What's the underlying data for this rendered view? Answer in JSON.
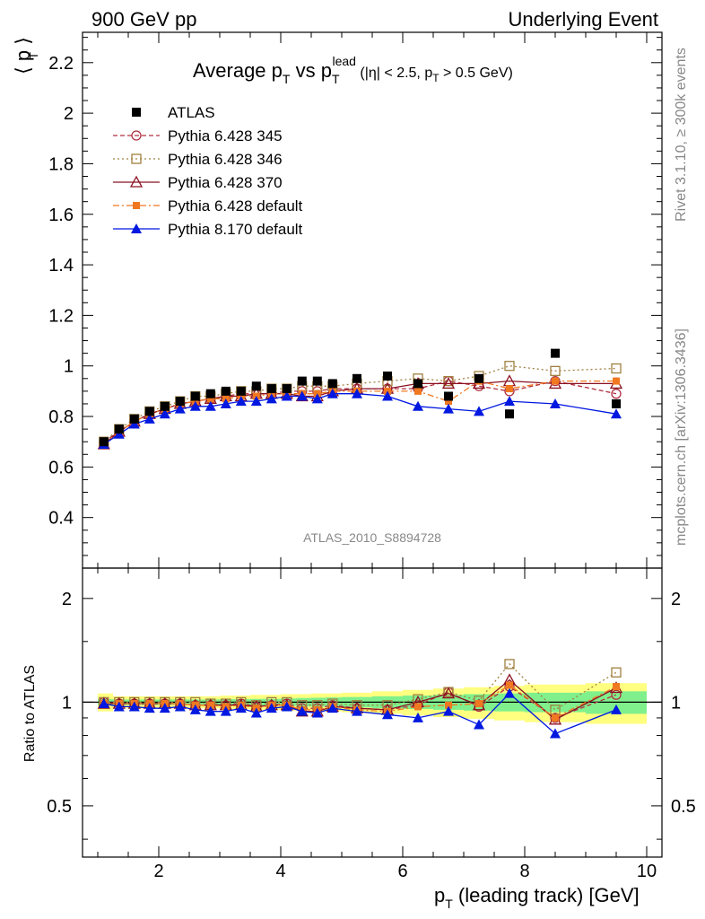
{
  "header": {
    "left": "900 GeV pp",
    "right": "Underlying Event"
  },
  "side_labels": {
    "top": "Rivet 3.1.10, ≥ 300k events",
    "bottom": "mcplots.cern.ch [arXiv:1306.3436]"
  },
  "chart_data": [
    {
      "type": "scatter",
      "panel": "main",
      "title": {
        "main": "Average p",
        "sub_T": "T",
        "vs": " vs p",
        "sup_lead": "lead",
        "cut_open": " (|η| < 2.5, p",
        "cut_sub": "T",
        "cut_close": " > 0.5 GeV)"
      },
      "ylabel": "⟨ p  ⟩",
      "ylabel_sub": "T",
      "xlim": [
        0.75,
        10.25
      ],
      "ylim": [
        0.2,
        2.32
      ],
      "yticks": [
        0.4,
        0.6,
        0.8,
        1,
        1.2,
        1.4,
        1.6,
        1.8,
        2,
        2.2
      ],
      "ytick_labels": [
        "0.4",
        "0.6",
        "0.8",
        "1",
        "1.2",
        "1.4",
        "1.6",
        "1.8",
        "2",
        "2.2"
      ],
      "watermark": "ATLAS_2010_S8894728",
      "legend_position": "top-left",
      "x": [
        1.1,
        1.35,
        1.6,
        1.85,
        2.1,
        2.35,
        2.6,
        2.85,
        3.1,
        3.35,
        3.6,
        3.85,
        4.1,
        4.35,
        4.6,
        4.85,
        5.25,
        5.75,
        6.25,
        6.75,
        7.25,
        7.75,
        8.5,
        9.5
      ],
      "series": [
        {
          "name": "ATLAS",
          "color": "#000000",
          "marker": "square-filled",
          "line": "none",
          "values": [
            0.7,
            0.75,
            0.79,
            0.82,
            0.84,
            0.86,
            0.88,
            0.89,
            0.9,
            0.9,
            0.92,
            0.91,
            0.91,
            0.94,
            0.94,
            0.93,
            0.95,
            0.96,
            0.93,
            0.88,
            0.95,
            0.81,
            1.05,
            0.85
          ]
        },
        {
          "name": "Pythia 6.428 345",
          "color": "#b03040",
          "marker": "circle-open",
          "line": "dashed",
          "values": [
            0.7,
            0.74,
            0.78,
            0.81,
            0.83,
            0.85,
            0.86,
            0.87,
            0.88,
            0.89,
            0.89,
            0.89,
            0.9,
            0.9,
            0.9,
            0.91,
            0.91,
            0.91,
            0.91,
            0.94,
            0.92,
            0.9,
            0.94,
            0.89
          ]
        },
        {
          "name": "Pythia 6.428 346",
          "color": "#a08040",
          "marker": "square-open",
          "line": "dotted",
          "values": [
            0.7,
            0.75,
            0.79,
            0.82,
            0.84,
            0.86,
            0.88,
            0.88,
            0.89,
            0.9,
            0.9,
            0.91,
            0.91,
            0.92,
            0.92,
            0.92,
            0.93,
            0.94,
            0.95,
            0.94,
            0.96,
            1.0,
            0.98,
            0.99
          ]
        },
        {
          "name": "Pythia 6.428 370",
          "color": "#8b1020",
          "marker": "triangle-open",
          "line": "solid",
          "values": [
            0.69,
            0.74,
            0.78,
            0.81,
            0.83,
            0.85,
            0.86,
            0.87,
            0.88,
            0.88,
            0.89,
            0.89,
            0.89,
            0.88,
            0.88,
            0.9,
            0.91,
            0.91,
            0.93,
            0.93,
            0.93,
            0.94,
            0.93,
            0.93
          ]
        },
        {
          "name": "Pythia 6.428 default",
          "color": "#f07820",
          "marker": "square-filled-small",
          "line": "dashdot",
          "values": [
            0.69,
            0.74,
            0.78,
            0.81,
            0.83,
            0.85,
            0.86,
            0.87,
            0.87,
            0.88,
            0.88,
            0.89,
            0.89,
            0.89,
            0.89,
            0.9,
            0.9,
            0.9,
            0.9,
            0.86,
            0.94,
            0.91,
            0.94,
            0.94
          ]
        },
        {
          "name": "Pythia 8.170 default",
          "color": "#0018e0",
          "marker": "triangle-filled",
          "line": "solid",
          "values": [
            0.69,
            0.73,
            0.77,
            0.79,
            0.81,
            0.83,
            0.84,
            0.84,
            0.85,
            0.86,
            0.86,
            0.87,
            0.88,
            0.88,
            0.87,
            0.89,
            0.89,
            0.88,
            0.84,
            0.83,
            0.82,
            0.86,
            0.85,
            0.81
          ]
        }
      ]
    },
    {
      "type": "scatter",
      "panel": "ratio",
      "ylabel": "Ratio to ATLAS",
      "xlabel": "p",
      "xlabel_sub": "T",
      "xlabel_rest": " (leading track) [GeV]",
      "xlim": [
        0.75,
        10.25
      ],
      "ylim": [
        0.355,
        2.45
      ],
      "yscale": "log",
      "xticks": [
        2,
        4,
        6,
        8,
        10
      ],
      "xtick_labels": [
        "2",
        "4",
        "6",
        "8",
        "10"
      ],
      "yticks": [
        0.5,
        1,
        2
      ],
      "ytick_labels": [
        "0.5",
        "1",
        "2"
      ],
      "band_edges": [
        1.0,
        1.25,
        1.5,
        1.75,
        2.0,
        2.25,
        2.5,
        2.75,
        3.0,
        3.25,
        3.5,
        3.75,
        4.0,
        4.25,
        4.5,
        4.75,
        5.0,
        5.5,
        6.0,
        6.5,
        7.0,
        7.5,
        8.0,
        9.0,
        10.0
      ],
      "band_stat": [
        0.02,
        0.018,
        0.018,
        0.018,
        0.018,
        0.018,
        0.018,
        0.018,
        0.02,
        0.02,
        0.022,
        0.022,
        0.025,
        0.028,
        0.03,
        0.032,
        0.035,
        0.04,
        0.045,
        0.05,
        0.055,
        0.06,
        0.065,
        0.075
      ],
      "band_total": [
        0.06,
        0.04,
        0.04,
        0.04,
        0.04,
        0.04,
        0.04,
        0.04,
        0.045,
        0.045,
        0.05,
        0.05,
        0.055,
        0.055,
        0.06,
        0.06,
        0.065,
        0.075,
        0.085,
        0.095,
        0.105,
        0.115,
        0.125,
        0.135
      ],
      "band_colors": {
        "total": "#ffff80",
        "stat": "#7ff08c"
      },
      "series": [
        {
          "name": "Pythia 6.428 345",
          "values": [
            1.0,
            0.99,
            0.99,
            0.99,
            0.99,
            0.99,
            0.98,
            0.98,
            0.98,
            0.99,
            0.97,
            0.98,
            0.99,
            0.96,
            0.96,
            0.98,
            0.96,
            0.95,
            0.98,
            1.07,
            0.97,
            1.11,
            0.9,
            1.05
          ]
        },
        {
          "name": "Pythia 6.428 346",
          "values": [
            1.0,
            1.0,
            1.0,
            1.0,
            1.0,
            1.0,
            1.0,
            0.99,
            0.99,
            1.0,
            0.98,
            1.0,
            1.0,
            0.98,
            0.98,
            0.99,
            0.98,
            0.98,
            1.02,
            1.07,
            1.01,
            1.29,
            0.95,
            1.22
          ]
        },
        {
          "name": "Pythia 6.428 370",
          "values": [
            0.99,
            0.99,
            0.99,
            0.99,
            0.99,
            0.99,
            0.98,
            0.98,
            0.98,
            0.98,
            0.97,
            0.98,
            0.98,
            0.94,
            0.94,
            0.97,
            0.96,
            0.95,
            1.0,
            1.06,
            0.98,
            1.16,
            0.89,
            1.1
          ]
        },
        {
          "name": "Pythia 6.428 default",
          "values": [
            0.99,
            0.99,
            0.99,
            0.99,
            0.99,
            0.99,
            0.98,
            0.98,
            0.97,
            0.98,
            0.96,
            0.98,
            0.98,
            0.95,
            0.95,
            0.97,
            0.95,
            0.94,
            0.97,
            0.98,
            0.99,
            1.12,
            0.9,
            1.11
          ]
        },
        {
          "name": "Pythia 8.170 default",
          "values": [
            0.99,
            0.97,
            0.97,
            0.96,
            0.96,
            0.97,
            0.95,
            0.94,
            0.94,
            0.96,
            0.93,
            0.96,
            0.97,
            0.94,
            0.93,
            0.96,
            0.94,
            0.92,
            0.9,
            0.94,
            0.86,
            1.06,
            0.81,
            0.95
          ]
        }
      ]
    }
  ]
}
